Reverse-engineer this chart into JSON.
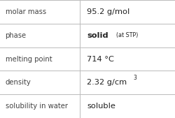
{
  "rows": [
    {
      "label": "molar mass",
      "value": "95.2 g/mol",
      "superscript": null,
      "extra": null
    },
    {
      "label": "phase",
      "value": "solid",
      "superscript": null,
      "extra": "(at STP)"
    },
    {
      "label": "melting point",
      "value": "714 °C",
      "superscript": null,
      "extra": null
    },
    {
      "label": "density",
      "value": "2.32 g/cm",
      "superscript": "3",
      "extra": null
    },
    {
      "label": "solubility in water",
      "value": "soluble",
      "superscript": null,
      "extra": null
    }
  ],
  "col_split": 0.455,
  "background": "#ffffff",
  "line_color": "#bbbbbb",
  "label_fontsize": 7.2,
  "value_fontsize": 8.2,
  "small_fontsize": 5.8,
  "super_fontsize": 5.5,
  "text_color": "#222222",
  "label_color": "#444444"
}
